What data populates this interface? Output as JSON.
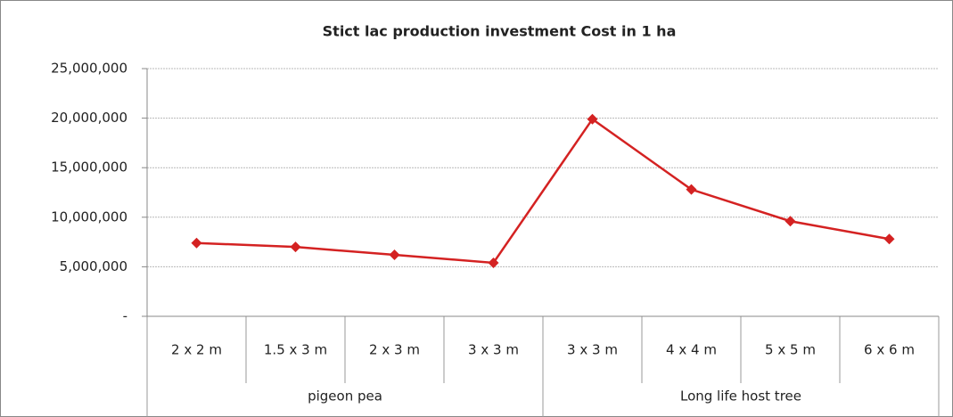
{
  "chart_data": {
    "type": "line",
    "title": "Stict lac production investment Cost in 1 ha",
    "groups": [
      {
        "name": "pigeon pea",
        "categories": [
          "2 x 2 m",
          "1.5 x 3 m",
          "2 x 3 m",
          "3 x 3 m"
        ]
      },
      {
        "name": "Long life host tree",
        "categories": [
          "3 x 3 m",
          "4 x 4 m",
          "5 x 5 m",
          "6 x 6 m"
        ]
      }
    ],
    "series": [
      {
        "color": "#d42222",
        "values": [
          7400000,
          7000000,
          6200000,
          5400000,
          19900000,
          12800000,
          9600000,
          7800000
        ]
      }
    ],
    "ylim": [
      0,
      25000000
    ],
    "yticks": [
      {
        "value": 0,
        "label": "-"
      },
      {
        "value": 5000000,
        "label": "5,000,000"
      },
      {
        "value": 10000000,
        "label": "10,000,000"
      },
      {
        "value": 15000000,
        "label": "15,000,000"
      },
      {
        "value": 20000000,
        "label": "20,000,000"
      },
      {
        "value": 25000000,
        "label": "25,000,000"
      }
    ],
    "grid": true
  }
}
